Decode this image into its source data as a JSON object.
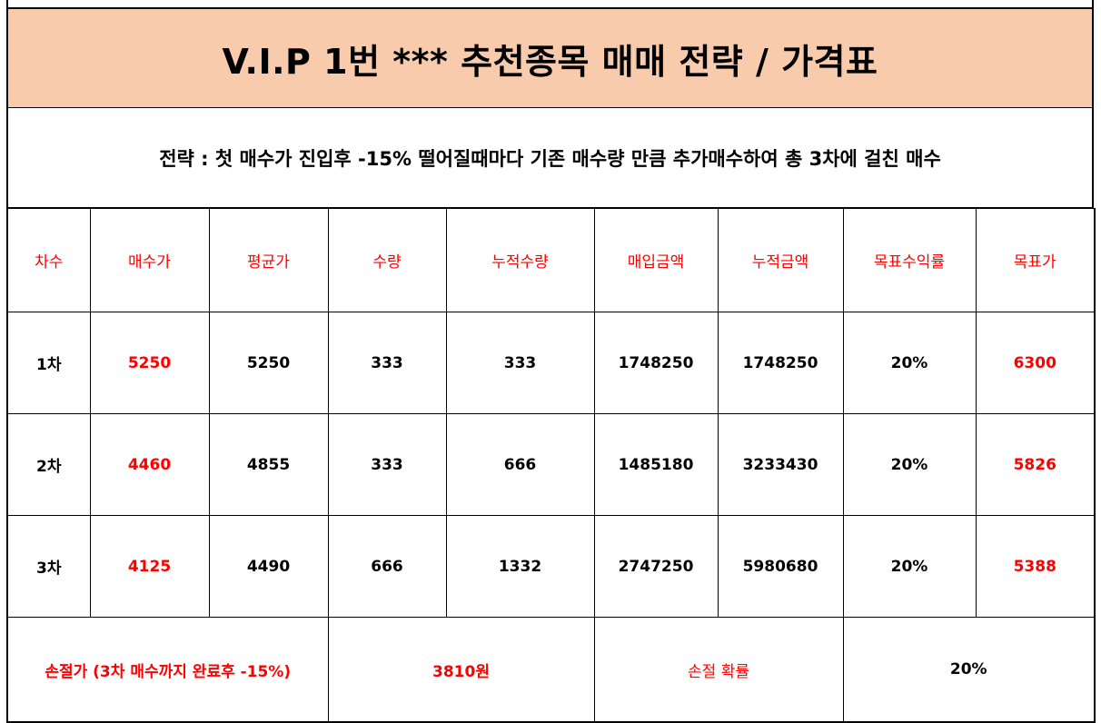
{
  "title": "V.I.P 1번 *** 추천종목  매매 전략 / 가격표",
  "strategy": "전략 : 첫 매수가 진입후 -15% 떨어질때마다 기존 매수량 만큼 추가매수하여 총 3차에 걸친 매수",
  "headers": [
    "차수",
    "매수가",
    "평균가",
    "수량",
    "누적수량",
    "매입금액",
    "누적금액",
    "목표수익률",
    "목표가"
  ],
  "rows": [
    {
      "stage": "1차",
      "buy_price": "5250",
      "avg_price": "5250",
      "qty": "333",
      "cum_qty": "333",
      "amount": "1748250",
      "cum_amount": "1748250",
      "target_rate": "20%",
      "target_price": "6300"
    },
    {
      "stage": "2차",
      "buy_price": "4460",
      "avg_price": "4855",
      "qty": "333",
      "cum_qty": "666",
      "amount": "1485180",
      "cum_amount": "3233430",
      "target_rate": "20%",
      "target_price": "5826"
    },
    {
      "stage": "3차",
      "buy_price": "4125",
      "avg_price": "4490",
      "qty": "666",
      "cum_qty": "1332",
      "amount": "2747250",
      "cum_amount": "5980680",
      "target_rate": "20%",
      "target_price": "5388"
    }
  ],
  "footer": {
    "stoploss_label": "손절가 (3차 매수까지 완료후 -15%)",
    "stoploss_value": "3810원",
    "prob_label": "손절 확률",
    "prob_value": "20%"
  },
  "colors": {
    "title_bg": "#f8cbad",
    "accent_red": "#ff0000"
  }
}
